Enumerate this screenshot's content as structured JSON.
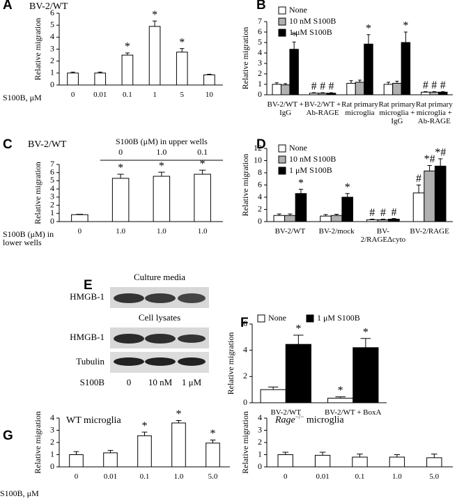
{
  "chart_data": [
    {
      "type": "bar",
      "panel": "A",
      "title": "BV-2/WT",
      "y_label": "Relative migration",
      "x_label": "S100B, μM",
      "categories": [
        "0",
        "0.01",
        "0.1",
        "1",
        "5",
        "10"
      ],
      "values": [
        1.0,
        1.0,
        2.5,
        4.9,
        2.75,
        0.85
      ],
      "errors": [
        0.08,
        0.08,
        0.18,
        0.45,
        0.3,
        0.05
      ],
      "annotations": [
        null,
        null,
        "*",
        "*",
        "*",
        null
      ],
      "color": "#ffffff",
      "ylim": [
        0,
        6
      ],
      "yticks": [
        0,
        1,
        2,
        3,
        4,
        5,
        6
      ]
    },
    {
      "type": "bar",
      "panel": "B",
      "y_label": "Relative migration",
      "legend": "upper left",
      "categories": [
        "BV-2/WT + IgG",
        "BV-2/WT + Ab-RAGE",
        "Rat primary microglia",
        "Rat primary microglia + IgG",
        "Rat primary microglia + Ab-RAGE"
      ],
      "series": [
        {
          "name": "None",
          "color": "#ffffff",
          "values": [
            1.0,
            0.15,
            1.1,
            1.0,
            0.25
          ],
          "errors": [
            0.15,
            0.05,
            0.25,
            0.2,
            0.05
          ],
          "annotations": [
            null,
            "#",
            null,
            null,
            "#"
          ]
        },
        {
          "name": "10 nM S100B",
          "color": "#b0b0b0",
          "values": [
            0.95,
            0.15,
            1.2,
            1.1,
            0.25
          ],
          "errors": [
            0.12,
            0.05,
            0.2,
            0.2,
            0.05
          ],
          "annotations": [
            null,
            "#",
            null,
            null,
            "#"
          ]
        },
        {
          "name": "1 μM S100B",
          "color": "#000000",
          "values": [
            4.35,
            0.15,
            4.85,
            5.0,
            0.25
          ],
          "errors": [
            0.7,
            0.05,
            0.9,
            1.0,
            0.05
          ],
          "annotations": [
            "*",
            "#",
            "*",
            "*",
            "#"
          ]
        }
      ],
      "ylim": [
        0,
        7
      ],
      "yticks": [
        0,
        1,
        2,
        3,
        4,
        5,
        6,
        7
      ]
    },
    {
      "type": "bar",
      "panel": "C",
      "title": "BV-2/WT",
      "y_label": "Relative migration",
      "x_label": "S100B (μM) in lower wells",
      "upper_label": "S100B (μM) in upper wells",
      "upper_categories": [
        "0",
        "1.0",
        "0.1"
      ],
      "categories": [
        "0",
        "1.0",
        "1.0",
        "1.0"
      ],
      "values": [
        0.85,
        5.3,
        5.55,
        5.8
      ],
      "errors": [
        0.05,
        0.5,
        0.5,
        0.5
      ],
      "annotations": [
        null,
        "*",
        "*",
        "*"
      ],
      "color": "#ffffff",
      "ylim": [
        0,
        7
      ],
      "yticks": [
        0,
        1,
        2,
        3,
        4,
        5,
        6,
        7
      ]
    },
    {
      "type": "bar",
      "panel": "D",
      "y_label": "Relative migration",
      "legend": "upper left",
      "categories": [
        "BV-2/WT",
        "BV-2/mock",
        "BV-2/RAGEΔcyto",
        "BV-2/RAGE"
      ],
      "series": [
        {
          "name": "None",
          "color": "#ffffff",
          "values": [
            1.0,
            0.9,
            0.3,
            4.7
          ],
          "errors": [
            0.25,
            0.25,
            0.1,
            1.3
          ],
          "annotations": [
            null,
            null,
            "#",
            "#"
          ]
        },
        {
          "name": "10 nM S100B",
          "color": "#b0b0b0",
          "values": [
            1.0,
            1.0,
            0.3,
            8.3
          ],
          "errors": [
            0.25,
            0.2,
            0.1,
            0.9
          ],
          "annotations": [
            null,
            null,
            "#",
            "*#"
          ]
        },
        {
          "name": "1 μM S100B",
          "color": "#000000",
          "values": [
            4.6,
            4.0,
            0.4,
            9.1
          ],
          "errors": [
            0.7,
            0.6,
            0.1,
            1.2
          ],
          "annotations": [
            "*",
            "*",
            "#",
            "*#"
          ]
        }
      ],
      "ylim": [
        0,
        12
      ],
      "yticks": [
        0,
        2,
        4,
        6,
        8,
        10,
        12
      ]
    },
    {
      "type": "bar",
      "panel": "F",
      "y_label": "Relative migration",
      "legend": "top",
      "categories": [
        "BV-2/WT",
        "BV-2/WT + BoxA"
      ],
      "series": [
        {
          "name": "None",
          "color": "#ffffff",
          "values": [
            1.0,
            0.35
          ],
          "errors": [
            0.2,
            0.1
          ],
          "annotations": [
            null,
            "*"
          ]
        },
        {
          "name": "1 μM S100B",
          "color": "#000000",
          "values": [
            4.45,
            4.2
          ],
          "errors": [
            0.7,
            0.7
          ],
          "annotations": [
            "*",
            "*"
          ]
        }
      ],
      "ylim": [
        0,
        6
      ],
      "yticks": [
        0,
        2,
        4,
        6
      ]
    },
    {
      "type": "bar",
      "panel": "G",
      "title": "WT microglia",
      "y_label": "Relative migration",
      "x_label": "S100B, μM",
      "categories": [
        "0",
        "0.01",
        "0.1",
        "1.0",
        "5.0"
      ],
      "values": [
        1.0,
        1.15,
        2.55,
        3.6,
        1.95
      ],
      "errors": [
        0.25,
        0.2,
        0.3,
        0.2,
        0.25
      ],
      "annotations": [
        null,
        null,
        "*",
        "*",
        "*"
      ],
      "color": "#ffffff",
      "ylim": [
        0,
        4
      ],
      "yticks": [
        0,
        1,
        2,
        3,
        4
      ]
    },
    {
      "type": "bar",
      "title": "Rage",
      "title_sup": "−/−",
      "title_suffix": "microglia",
      "y_label": "Relative migration",
      "categories": [
        "0",
        "0.01",
        "0.1",
        "1.0",
        "5.0"
      ],
      "values": [
        1.0,
        0.95,
        0.8,
        0.8,
        0.75
      ],
      "errors": [
        0.2,
        0.25,
        0.25,
        0.2,
        0.3
      ],
      "color": "#ffffff",
      "ylim": [
        0,
        4
      ],
      "yticks": [
        0,
        1,
        2,
        3,
        4
      ]
    }
  ],
  "blot": {
    "panel": "E",
    "culture_media": "Culture media",
    "cell_lysates": "Cell lysates",
    "rows": [
      "HMGB-1",
      "HMGB-1",
      "Tubulin"
    ],
    "treatment": "S100B",
    "lanes": [
      "0",
      "10 nM",
      "1 μM"
    ]
  }
}
